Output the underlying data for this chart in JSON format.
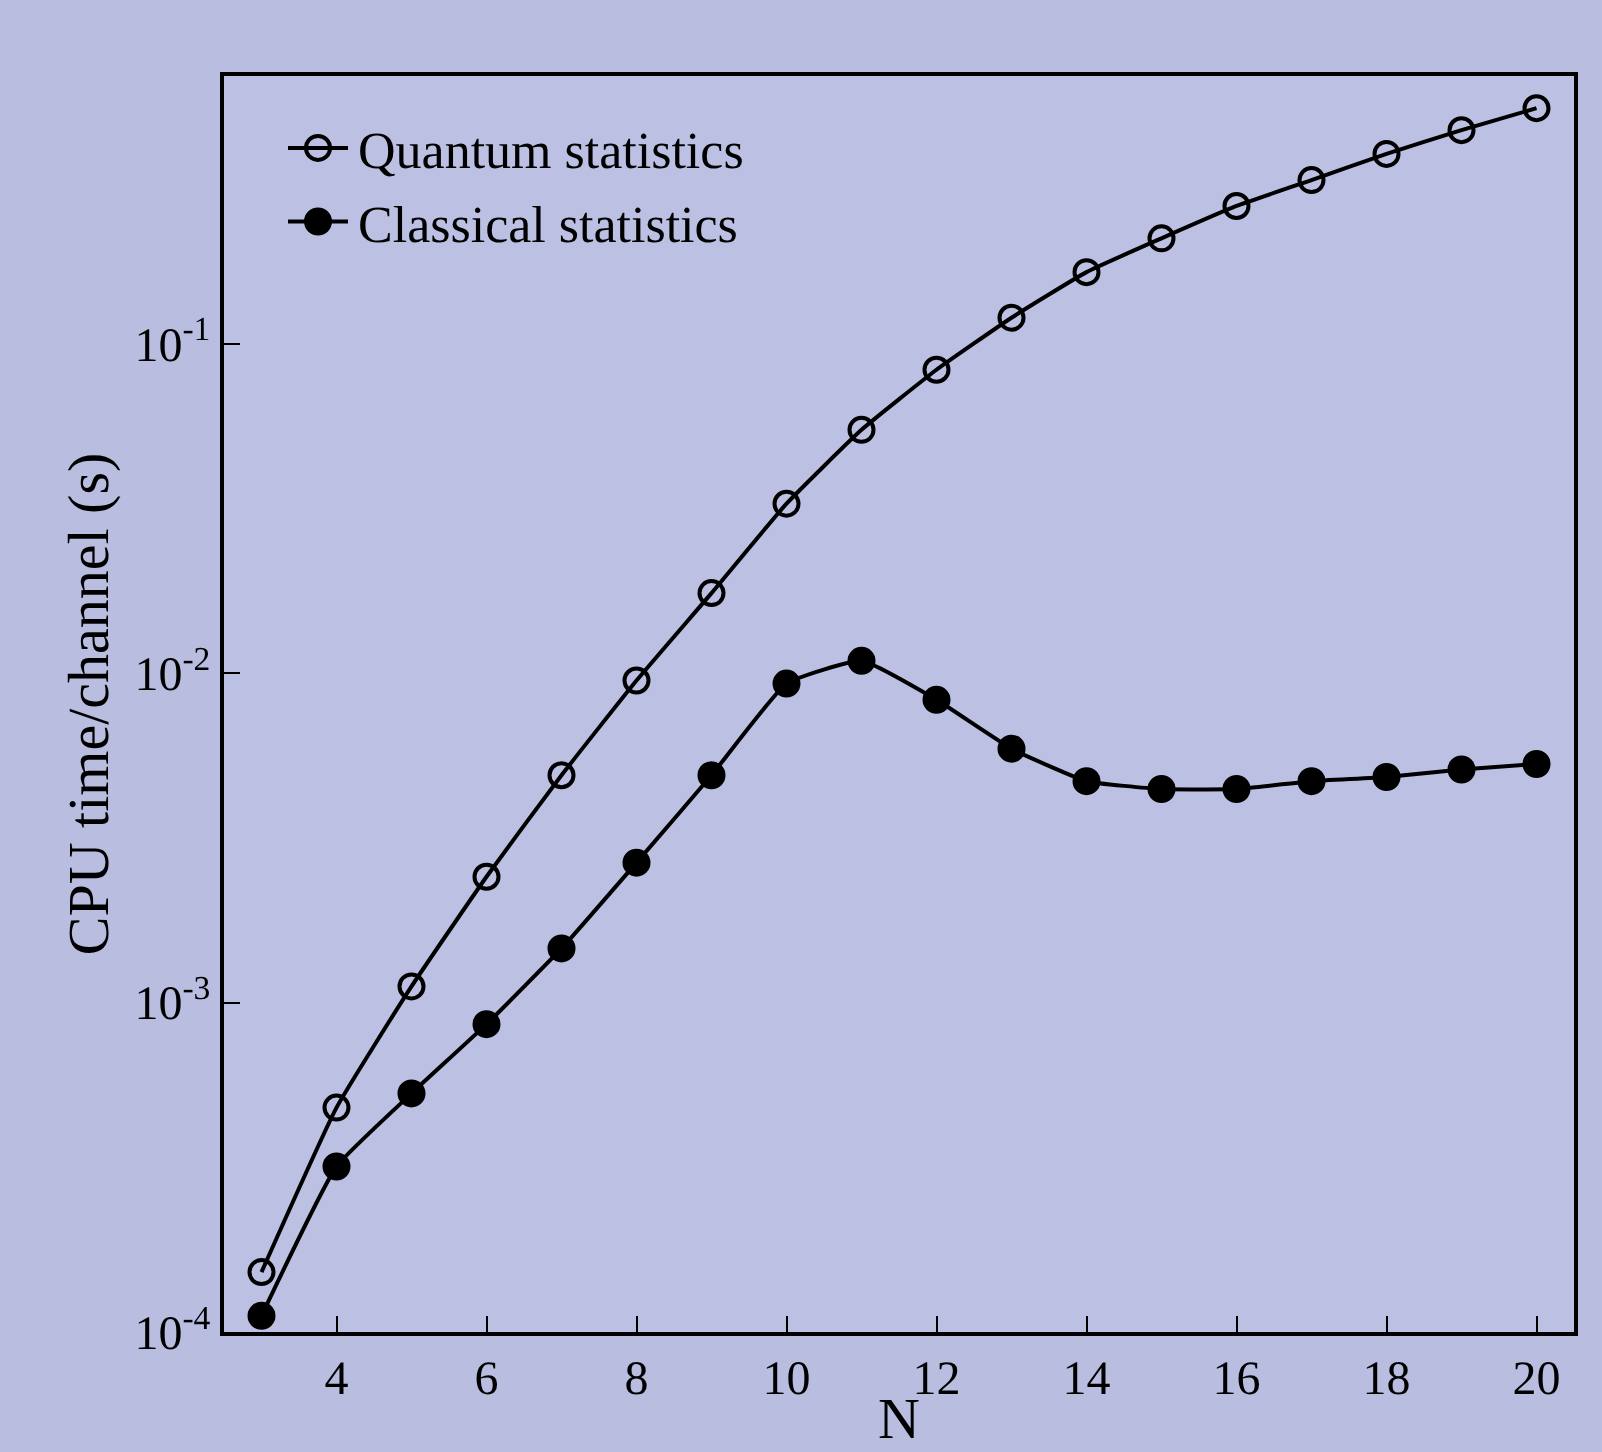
{
  "chart_data": {
    "type": "line",
    "xlabel": "N",
    "ylabel": "CPU time/channel (s)",
    "x": [
      3,
      4,
      5,
      6,
      7,
      8,
      9,
      10,
      11,
      12,
      13,
      14,
      15,
      16,
      17,
      18,
      19,
      20
    ],
    "series": [
      {
        "name": "Quantum statistics",
        "color": "#000000",
        "marker": "circle-open",
        "values": [
          0.000152,
          0.00048,
          0.00112,
          0.00241,
          0.0049,
          0.0095,
          0.0175,
          0.0327,
          0.0548,
          0.0834,
          0.12,
          0.165,
          0.209,
          0.262,
          0.314,
          0.377,
          0.445,
          0.519
        ]
      },
      {
        "name": "Classical statistics",
        "color": "#000000",
        "marker": "circle",
        "values": [
          0.000112,
          0.000318,
          0.00053,
          0.00086,
          0.00146,
          0.00266,
          0.0049,
          0.0093,
          0.0109,
          0.0083,
          0.0059,
          0.0047,
          0.00445,
          0.00445,
          0.0047,
          0.00484,
          0.0051,
          0.0053
        ]
      }
    ],
    "log": "y",
    "xlim": [
      2.5,
      20.5
    ],
    "ylim": [
      0.0001,
      0.65
    ],
    "xticks": [
      4,
      6,
      8,
      10,
      12,
      14,
      16,
      18,
      20
    ],
    "yticks": [
      {
        "value": 0.0001,
        "label": "10$^{-4}$"
      },
      {
        "value": 0.001,
        "label": "10$^{-3}$"
      },
      {
        "value": 0.01,
        "label": "10$^{-2}$"
      },
      {
        "value": 0.1,
        "label": "10$^{-1}$"
      }
    ],
    "grid": false,
    "legend": "top left",
    "line_style": "solid"
  }
}
